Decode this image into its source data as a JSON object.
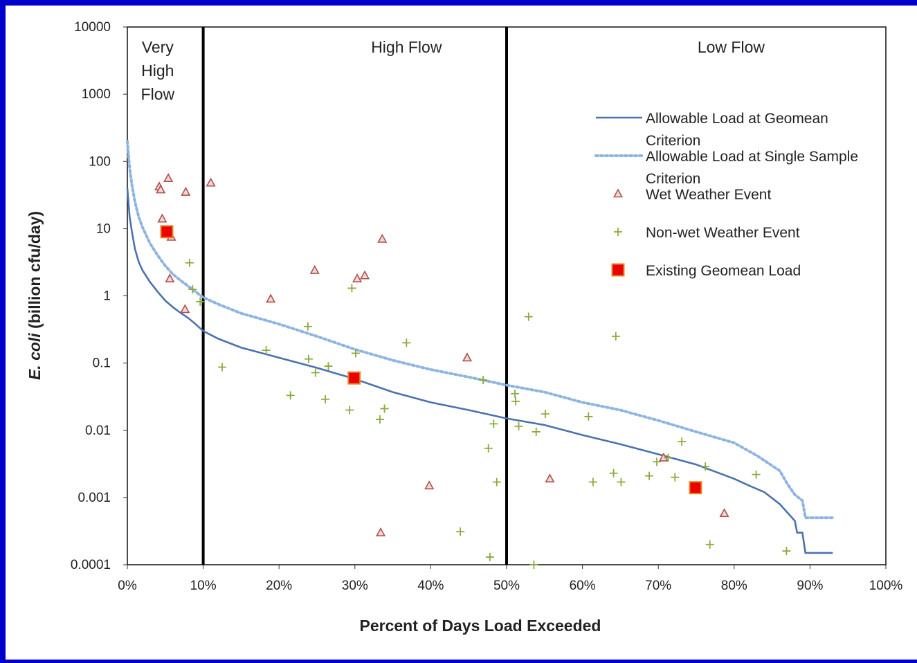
{
  "chart_data": {
    "type": "scatter",
    "xlabel": "Percent of Days Load Exceeded",
    "ylabel_italic": "E. coli",
    "ylabel_rest": " (billion cfu/day)",
    "y_scale": "log",
    "xlim": [
      0,
      100
    ],
    "ylim": [
      0.0001,
      10000
    ],
    "x_ticks": [
      "0%",
      "10%",
      "20%",
      "30%",
      "40%",
      "50%",
      "60%",
      "70%",
      "80%",
      "90%",
      "100%"
    ],
    "y_ticks": [
      "0.0001",
      "0.001",
      "0.01",
      "0.1",
      "1",
      "10",
      "100",
      "1000",
      "10000"
    ],
    "regions": [
      {
        "boundary_x": 10,
        "label_lines": [
          "Very",
          "High",
          "Flow"
        ],
        "label_x": 4
      },
      {
        "boundary_x": 50,
        "label_lines": [
          "High Flow"
        ],
        "label_x": 36.8
      },
      {
        "boundary_x": null,
        "label_lines": [
          "Low Flow"
        ],
        "label_x": 79.6
      }
    ],
    "legend": {
      "placement": "right",
      "entries": [
        {
          "id": "geomean",
          "label_lines": [
            "Allowable Load at Geomean",
            "Criterion"
          ]
        },
        {
          "id": "single",
          "label_lines": [
            "Allowable Load at Single Sample",
            "Criterion"
          ]
        },
        {
          "id": "wet",
          "label_lines": [
            "Wet Weather Event"
          ]
        },
        {
          "id": "nonwet",
          "label_lines": [
            "Non-wet Weather Event"
          ]
        },
        {
          "id": "existing",
          "label_lines": [
            "Existing Geomean Load"
          ]
        }
      ]
    },
    "colors": {
      "geomean_line": "#4a72b0",
      "single_line": "#8db4e2",
      "wet_marker": "#b0504a",
      "nonwet_marker": "#8aab3c",
      "existing_fill": "#ee0000",
      "existing_stroke": "#e08a2a",
      "region_line": "#000000",
      "border": "#0000cc"
    },
    "series": [
      {
        "id": "geomean",
        "style": "line",
        "points": [
          [
            0,
            40
          ],
          [
            0.3,
            15
          ],
          [
            0.6,
            9
          ],
          [
            1,
            5
          ],
          [
            1.5,
            3.2
          ],
          [
            2,
            2.4
          ],
          [
            3,
            1.6
          ],
          [
            4,
            1.15
          ],
          [
            5,
            0.85
          ],
          [
            6,
            0.68
          ],
          [
            7,
            0.56
          ],
          [
            8,
            0.47
          ],
          [
            9,
            0.38
          ],
          [
            10,
            0.3
          ],
          [
            12,
            0.23
          ],
          [
            15,
            0.17
          ],
          [
            20,
            0.12
          ],
          [
            25,
            0.085
          ],
          [
            30,
            0.058
          ],
          [
            35,
            0.037
          ],
          [
            40,
            0.026
          ],
          [
            45,
            0.02
          ],
          [
            50,
            0.015
          ],
          [
            55,
            0.012
          ],
          [
            60,
            0.0085
          ],
          [
            65,
            0.0062
          ],
          [
            70,
            0.0044
          ],
          [
            75,
            0.0031
          ],
          [
            80,
            0.0019
          ],
          [
            82,
            0.0015
          ],
          [
            84,
            0.0012
          ],
          [
            86,
            0.0008
          ],
          [
            87,
            0.0006
          ],
          [
            88,
            0.00045
          ],
          [
            88.3,
            0.0003
          ],
          [
            89,
            0.0003
          ],
          [
            89.4,
            0.00015
          ],
          [
            93,
            0.00015
          ]
        ]
      },
      {
        "id": "single",
        "style": "dotted",
        "points": [
          [
            0,
            200
          ],
          [
            0.3,
            80
          ],
          [
            0.6,
            45
          ],
          [
            1,
            25
          ],
          [
            1.5,
            15
          ],
          [
            2,
            10.5
          ],
          [
            3,
            6
          ],
          [
            4,
            4
          ],
          [
            5,
            2.8
          ],
          [
            6,
            2.1
          ],
          [
            7,
            1.7
          ],
          [
            8,
            1.4
          ],
          [
            9,
            1.15
          ],
          [
            10,
            0.95
          ],
          [
            12,
            0.75
          ],
          [
            15,
            0.55
          ],
          [
            20,
            0.38
          ],
          [
            25,
            0.25
          ],
          [
            30,
            0.16
          ],
          [
            35,
            0.11
          ],
          [
            40,
            0.08
          ],
          [
            45,
            0.062
          ],
          [
            50,
            0.047
          ],
          [
            55,
            0.037
          ],
          [
            60,
            0.026
          ],
          [
            65,
            0.02
          ],
          [
            70,
            0.014
          ],
          [
            75,
            0.0095
          ],
          [
            80,
            0.0065
          ],
          [
            83,
            0.0042
          ],
          [
            86,
            0.0025
          ],
          [
            87,
            0.0016
          ],
          [
            88,
            0.0011
          ],
          [
            89,
            0.0009
          ],
          [
            89.4,
            0.0005
          ],
          [
            93,
            0.0005
          ]
        ]
      },
      {
        "id": "wet",
        "style": "triangle",
        "points": [
          [
            4.2,
            42
          ],
          [
            4.4,
            38
          ],
          [
            4.6,
            14
          ],
          [
            5.4,
            56
          ],
          [
            5.6,
            1.8
          ],
          [
            5.8,
            7.5
          ],
          [
            7.6,
            0.63
          ],
          [
            7.7,
            35
          ],
          [
            11,
            48
          ],
          [
            18.9,
            0.9
          ],
          [
            24.7,
            2.4
          ],
          [
            30.3,
            1.8
          ],
          [
            31.3,
            2.0
          ],
          [
            33.4,
            0.0003
          ],
          [
            33.6,
            7
          ],
          [
            39.8,
            0.0015
          ],
          [
            44.8,
            0.12
          ],
          [
            55.7,
            0.0019
          ],
          [
            70.7,
            0.0039
          ],
          [
            78.7,
            0.00058
          ]
        ]
      },
      {
        "id": "nonwet",
        "style": "plus",
        "points": [
          [
            8.2,
            3.1
          ],
          [
            8.6,
            1.25
          ],
          [
            9.6,
            0.82
          ],
          [
            12.5,
            0.087
          ],
          [
            18.3,
            0.155
          ],
          [
            21.5,
            0.033
          ],
          [
            23.8,
            0.35
          ],
          [
            23.9,
            0.115
          ],
          [
            24.8,
            0.072
          ],
          [
            26.1,
            0.029
          ],
          [
            26.5,
            0.09
          ],
          [
            29.3,
            0.02
          ],
          [
            29.6,
            1.3
          ],
          [
            30.1,
            0.14
          ],
          [
            33.3,
            0.0145
          ],
          [
            33.9,
            0.021
          ],
          [
            36.8,
            0.2
          ],
          [
            43.9,
            0.00031
          ],
          [
            46.9,
            0.056
          ],
          [
            47.6,
            0.0054
          ],
          [
            47.8,
            0.00013
          ],
          [
            48.3,
            0.0125
          ],
          [
            48.7,
            0.0017
          ],
          [
            51.1,
            0.035
          ],
          [
            51.2,
            0.027
          ],
          [
            51.6,
            0.0115
          ],
          [
            52.9,
            0.49
          ],
          [
            53.6,
            0.0001
          ],
          [
            53.9,
            0.0095
          ],
          [
            55.1,
            0.0175
          ],
          [
            60.8,
            0.016
          ],
          [
            61.4,
            0.0017
          ],
          [
            64.1,
            0.0023
          ],
          [
            64.4,
            0.25
          ],
          [
            65.1,
            0.0017
          ],
          [
            68.8,
            0.0021
          ],
          [
            69.8,
            0.0034
          ],
          [
            71.3,
            0.0039
          ],
          [
            72.2,
            0.002
          ],
          [
            73.1,
            0.0068
          ],
          [
            76.2,
            0.0029
          ],
          [
            76.8,
            0.0002
          ],
          [
            82.9,
            0.0022
          ],
          [
            86.9,
            0.00016
          ]
        ]
      },
      {
        "id": "existing",
        "style": "square",
        "points": [
          [
            5.2,
            9.0
          ],
          [
            29.9,
            0.06
          ],
          [
            74.9,
            0.0014
          ]
        ]
      }
    ]
  }
}
